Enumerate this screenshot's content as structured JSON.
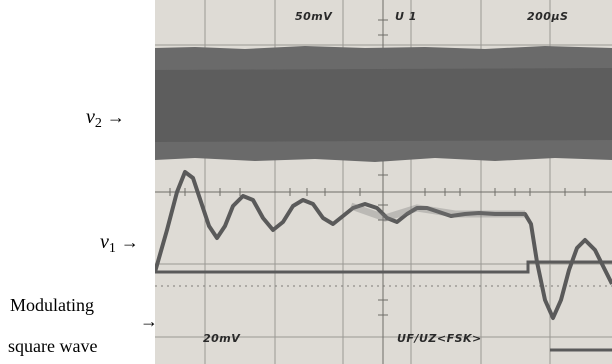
{
  "labels": {
    "v2": {
      "var": "v",
      "sub": "2",
      "arrow": "→"
    },
    "v1": {
      "var": "v",
      "sub": "1",
      "arrow": "→"
    },
    "modulating_line1": "Modulating",
    "modulating_line2": "square wave",
    "modulating_arrow": "→"
  },
  "scope_readout": {
    "ch1_scale": "50mV",
    "channel": "U 1",
    "timebase": "200μS",
    "ch2_scale": "20mV",
    "mode": "UF/UZ<FSK>"
  },
  "colors": {
    "screen": "#dedbd5",
    "trace": "#5a5a5a",
    "band": "#6a6a6a",
    "grid": "#9a9893"
  }
}
